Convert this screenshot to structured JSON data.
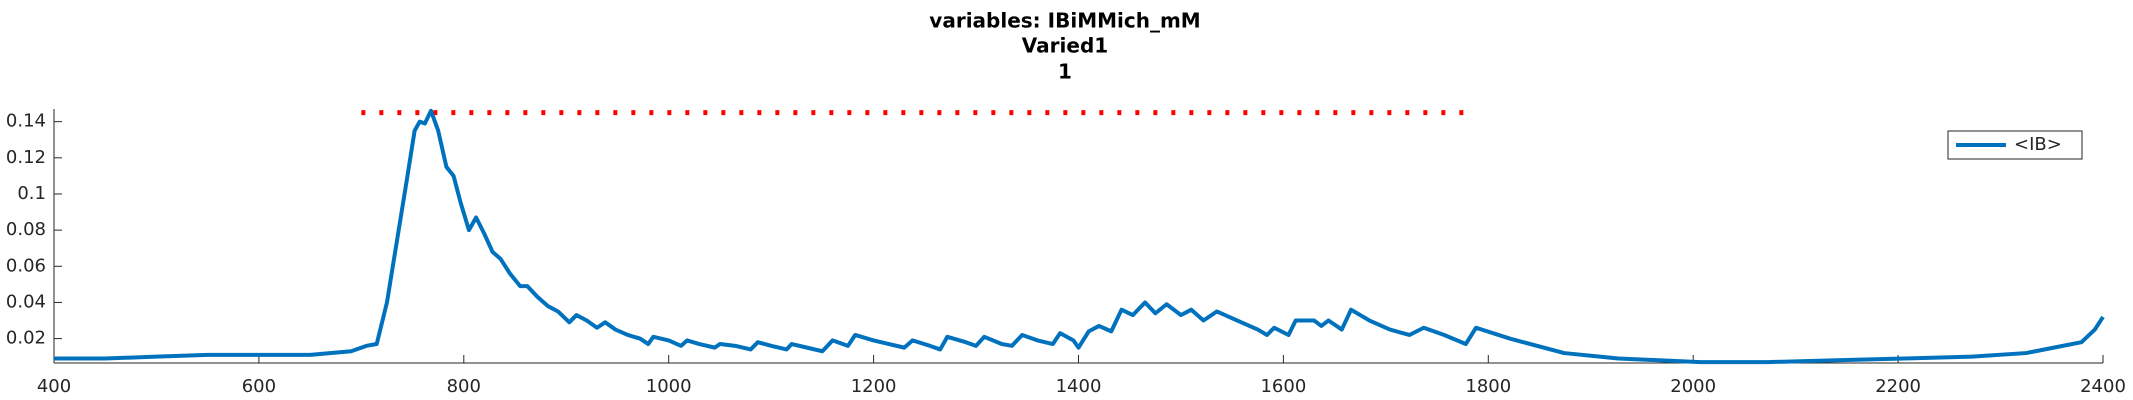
{
  "chart_data": {
    "type": "line",
    "title": "variables: IBiMMich_mM",
    "subtitle": [
      "Varied1",
      "1"
    ],
    "xlim": [
      400,
      2400
    ],
    "xticks": [
      400,
      600,
      800,
      1000,
      1200,
      1400,
      1600,
      1800,
      2000,
      2200,
      2400
    ],
    "ylim": [
      0.0065,
      0.147
    ],
    "yticks": [
      0.02,
      0.04,
      0.06,
      0.08,
      0.1,
      0.12,
      0.14
    ],
    "grid": false,
    "legend": "upper right",
    "reference": {
      "color": "#ff0000",
      "style": "dotted",
      "x": [
        700,
        1780
      ],
      "values": [
        0.145,
        0.145
      ]
    },
    "series": [
      {
        "name": "<IB>",
        "color": "#0072bd",
        "x": [
          400,
          450,
          500,
          550,
          600,
          650,
          690,
          705,
          715,
          725,
          735,
          745,
          752,
          757,
          762,
          768,
          775,
          783,
          790,
          797,
          805,
          812,
          820,
          828,
          836,
          845,
          855,
          862,
          872,
          882,
          892,
          903,
          910,
          920,
          930,
          938,
          948,
          960,
          972,
          980,
          985,
          1000,
          1012,
          1018,
          1030,
          1045,
          1050,
          1065,
          1080,
          1087,
          1100,
          1115,
          1120,
          1135,
          1150,
          1160,
          1175,
          1182,
          1200,
          1215,
          1230,
          1238,
          1255,
          1265,
          1272,
          1290,
          1300,
          1308,
          1325,
          1335,
          1345,
          1360,
          1375,
          1382,
          1395,
          1400,
          1410,
          1420,
          1432,
          1442,
          1453,
          1465,
          1475,
          1486,
          1500,
          1510,
          1522,
          1535,
          1555,
          1575,
          1584,
          1591,
          1605,
          1612,
          1630,
          1637,
          1644,
          1657,
          1666,
          1684,
          1704,
          1723,
          1737,
          1757,
          1778,
          1788,
          1821,
          1874,
          1927,
          2007,
          2073,
          2140,
          2206,
          2272,
          2325,
          2352,
          2379,
          2392,
          2400
        ],
        "values": [
          0.009,
          0.009,
          0.01,
          0.011,
          0.011,
          0.011,
          0.013,
          0.016,
          0.017,
          0.04,
          0.075,
          0.11,
          0.135,
          0.14,
          0.139,
          0.146,
          0.135,
          0.115,
          0.11,
          0.095,
          0.08,
          0.087,
          0.078,
          0.068,
          0.064,
          0.056,
          0.049,
          0.049,
          0.043,
          0.038,
          0.035,
          0.029,
          0.033,
          0.03,
          0.026,
          0.029,
          0.025,
          0.022,
          0.02,
          0.017,
          0.021,
          0.019,
          0.016,
          0.019,
          0.017,
          0.015,
          0.017,
          0.016,
          0.014,
          0.018,
          0.016,
          0.014,
          0.017,
          0.015,
          0.013,
          0.019,
          0.016,
          0.022,
          0.019,
          0.017,
          0.015,
          0.019,
          0.016,
          0.014,
          0.021,
          0.018,
          0.016,
          0.021,
          0.017,
          0.016,
          0.022,
          0.019,
          0.017,
          0.023,
          0.019,
          0.015,
          0.024,
          0.027,
          0.024,
          0.036,
          0.033,
          0.04,
          0.034,
          0.039,
          0.033,
          0.036,
          0.03,
          0.035,
          0.03,
          0.025,
          0.022,
          0.026,
          0.022,
          0.03,
          0.03,
          0.027,
          0.03,
          0.025,
          0.036,
          0.03,
          0.025,
          0.022,
          0.026,
          0.022,
          0.017,
          0.026,
          0.02,
          0.012,
          0.009,
          0.007,
          0.007,
          0.008,
          0.009,
          0.01,
          0.012,
          0.015,
          0.018,
          0.025,
          0.032
        ]
      }
    ]
  }
}
